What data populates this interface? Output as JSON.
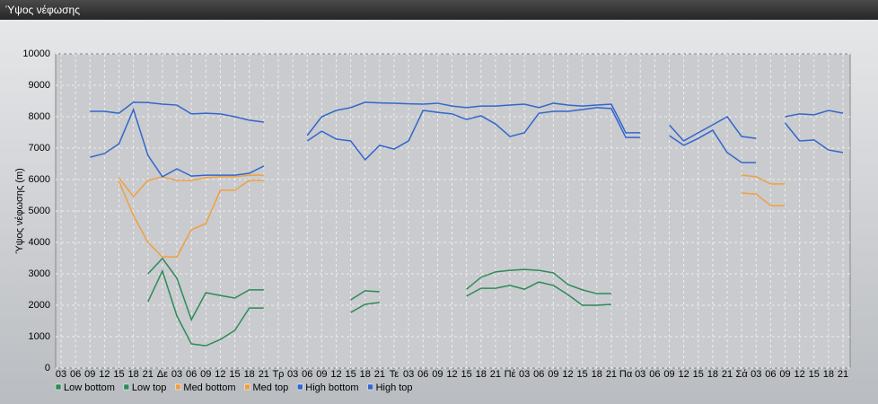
{
  "chart_data": {
    "type": "line",
    "title": "Ύψος νέφωσης",
    "y_label": "Ύψος νέφωσης (m)",
    "categories": [
      "03",
      "06",
      "09",
      "12",
      "15",
      "18",
      "21",
      "Δε",
      "03",
      "06",
      "09",
      "12",
      "15",
      "18",
      "21",
      "Τρ",
      "03",
      "06",
      "09",
      "12",
      "15",
      "18",
      "21",
      "Τε",
      "03",
      "06",
      "09",
      "12",
      "15",
      "18",
      "21",
      "Πέ",
      "03",
      "06",
      "09",
      "12",
      "15",
      "18",
      "21",
      "Πα",
      "03",
      "06",
      "09",
      "12",
      "15",
      "18",
      "21",
      "Σά",
      "03",
      "06",
      "09",
      "12",
      "15",
      "18",
      "21"
    ],
    "ylim": [
      0,
      10000
    ],
    "yticks": [
      0,
      1000,
      2000,
      3000,
      4000,
      5000,
      6000,
      7000,
      8000,
      9000,
      10000
    ],
    "grid": true,
    "series": [
      {
        "name": "Low bottom",
        "color": "#2e8b57",
        "values": [
          null,
          null,
          null,
          null,
          null,
          null,
          2110,
          3090,
          1660,
          770,
          710,
          910,
          1200,
          1910,
          1910,
          null,
          null,
          null,
          null,
          null,
          1770,
          2030,
          2090,
          null,
          null,
          null,
          null,
          null,
          2290,
          2540,
          2540,
          2630,
          2510,
          2740,
          2630,
          2340,
          2000,
          2000,
          2030,
          null,
          null,
          null,
          null,
          null,
          null,
          null,
          null,
          null,
          null,
          null,
          null,
          null,
          null,
          null,
          null
        ]
      },
      {
        "name": "Low top",
        "color": "#2e8b57",
        "values": [
          null,
          null,
          null,
          null,
          null,
          null,
          3000,
          3490,
          2860,
          1540,
          2400,
          2310,
          2230,
          2490,
          2490,
          null,
          null,
          null,
          null,
          null,
          2170,
          2460,
          2430,
          null,
          null,
          null,
          null,
          null,
          2510,
          2890,
          3060,
          3110,
          3140,
          3110,
          3030,
          2660,
          2490,
          2370,
          2370,
          null,
          null,
          null,
          null,
          null,
          null,
          null,
          null,
          null,
          null,
          null,
          null,
          null,
          null,
          null,
          null
        ]
      },
      {
        "name": "Med bottom",
        "color": "#f0a040",
        "values": [
          null,
          null,
          null,
          null,
          5940,
          4860,
          4000,
          3540,
          3540,
          4400,
          4600,
          5660,
          5660,
          5970,
          5970,
          null,
          null,
          null,
          null,
          null,
          null,
          null,
          null,
          null,
          null,
          null,
          null,
          null,
          null,
          null,
          null,
          null,
          null,
          null,
          null,
          null,
          null,
          null,
          null,
          null,
          null,
          null,
          null,
          null,
          null,
          null,
          null,
          5570,
          5540,
          5170,
          5170,
          null,
          null,
          null,
          null
        ]
      },
      {
        "name": "Med top",
        "color": "#f0a040",
        "values": [
          null,
          null,
          null,
          null,
          6060,
          5460,
          5970,
          6090,
          5970,
          5970,
          6060,
          6090,
          6090,
          6140,
          6140,
          null,
          null,
          null,
          null,
          null,
          null,
          null,
          null,
          null,
          null,
          null,
          null,
          null,
          null,
          null,
          null,
          null,
          null,
          null,
          null,
          null,
          null,
          null,
          null,
          null,
          null,
          null,
          null,
          null,
          null,
          null,
          null,
          6140,
          6090,
          5860,
          5860,
          null,
          null,
          null,
          null
        ]
      },
      {
        "name": "High bottom",
        "color": "#3366cc",
        "values": [
          null,
          null,
          6710,
          6830,
          7140,
          8230,
          6770,
          6090,
          6340,
          6110,
          6140,
          6140,
          6140,
          6200,
          6430,
          null,
          null,
          7230,
          7540,
          7290,
          7230,
          6630,
          7090,
          6970,
          7230,
          8200,
          8140,
          8090,
          7910,
          8030,
          7770,
          7370,
          7490,
          8110,
          8170,
          8170,
          8230,
          8290,
          8260,
          7340,
          7340,
          null,
          7400,
          7090,
          7310,
          7570,
          6860,
          6540,
          6540,
          null,
          7800,
          7230,
          7260,
          6940,
          6860
        ]
      },
      {
        "name": "High top",
        "color": "#3366cc",
        "values": [
          null,
          null,
          8170,
          8170,
          8110,
          8460,
          8450,
          8400,
          8370,
          8090,
          8110,
          8090,
          8000,
          7890,
          7830,
          null,
          null,
          7400,
          8000,
          8200,
          8290,
          8460,
          8440,
          8430,
          8410,
          8400,
          8430,
          8340,
          8290,
          8340,
          8340,
          8370,
          8400,
          8290,
          8430,
          8370,
          8340,
          8370,
          8400,
          7490,
          7490,
          null,
          7740,
          7230,
          7490,
          7740,
          8000,
          7370,
          7310,
          null,
          8000,
          8090,
          8060,
          8200,
          8110
        ]
      }
    ]
  }
}
